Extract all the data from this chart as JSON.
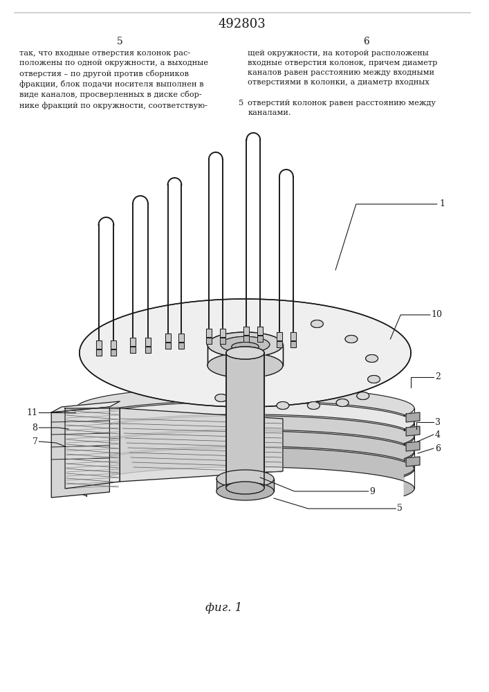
{
  "patent_number": "492803",
  "page_left": "5",
  "page_right": "6",
  "text_left": "так, что входные отверстия колонок рас-\nположены по одной окружности, а выходные\nотверстия – по другой против сборников\nфракции, блок подачи носителя выполнен в\nвиде каналов, просверленных в диске сбор-\nнике фракций по окружности, соответствую-",
  "text_right_1": "щей окружности, на которой расположены\nвходные отверстия колонок, причем диаметр\nканалов равен расстоянию между входными\nотверстиями в колонки, а диаметр входных",
  "text_right_2": "отверстий колонок равен расстоянию между\nканалами.",
  "text_right_marker": "5",
  "caption": "фиг. 1",
  "bg_color": "#ffffff",
  "lc": "#1a1a1a"
}
